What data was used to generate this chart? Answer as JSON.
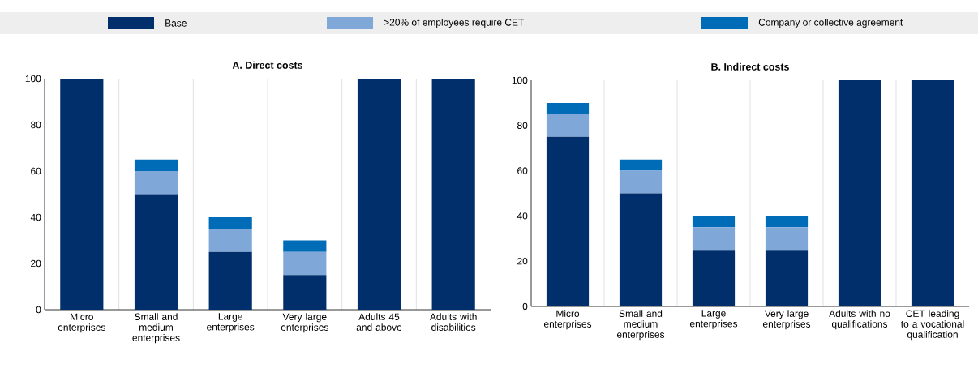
{
  "chart_data": [
    {
      "type": "bar",
      "title": "A. Direct costs",
      "stacked": true,
      "grid": "x",
      "legend": "top",
      "categories": [
        "Micro enterprises",
        "Small and medium enterprises",
        "Large enterprises",
        "Very large enterprises",
        "Adults 45 and above",
        "Adults with disabilities"
      ],
      "ylim": [
        0,
        100
      ],
      "yticks": [
        0,
        20,
        40,
        60,
        80,
        100
      ],
      "series": [
        {
          "name": "Base",
          "color": "#002f6c",
          "values": [
            100,
            50,
            25,
            15,
            100,
            100
          ]
        },
        {
          "name": ">20% of employees require CET",
          "color": "#7fa8d9",
          "values": [
            0,
            10,
            10,
            10,
            0,
            0
          ]
        },
        {
          "name": "Company or collective agreement",
          "color": "#006bb6",
          "values": [
            0,
            5,
            5,
            5,
            0,
            0
          ]
        }
      ]
    },
    {
      "type": "bar",
      "title": "B. Indirect costs",
      "stacked": true,
      "grid": "x",
      "categories": [
        "Micro enterprises",
        "Small and medium enterprises",
        "Large enterprises",
        "Very large enterprises",
        "Adults with no qualifications",
        "CET leading to a vocational qualification"
      ],
      "ylim": [
        0,
        100
      ],
      "yticks": [
        0,
        20,
        40,
        60,
        80,
        100
      ],
      "series": [
        {
          "color": "#002f6c",
          "values": [
            75,
            50,
            25,
            25,
            100,
            100
          ]
        },
        {
          "color": "#7fa8d9",
          "values": [
            10,
            10,
            10,
            10,
            0,
            0
          ]
        },
        {
          "color": "#006bb6",
          "values": [
            5,
            5,
            5,
            5,
            0,
            0
          ]
        }
      ]
    }
  ]
}
